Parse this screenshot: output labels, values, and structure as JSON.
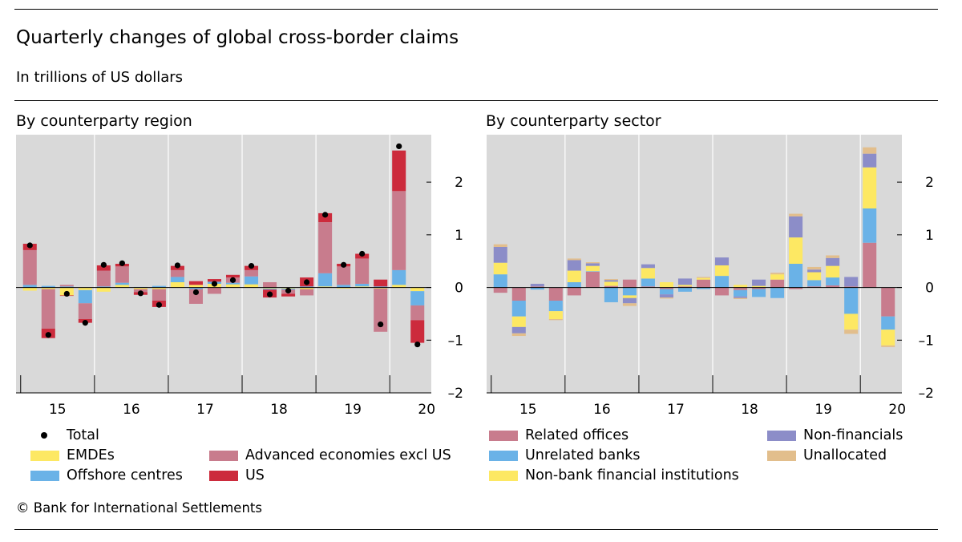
{
  "header": {
    "title": "Quarterly changes of global cross-border claims",
    "subtitle": "In trillions of US dollars"
  },
  "footer": {
    "source": "© Bank for International Settlements"
  },
  "colors": {
    "emdes": "#FDE863",
    "offshore": "#6AB2E7",
    "advanced": "#C87C8D",
    "us": "#CC2B3C",
    "related": "#C87C8D",
    "unrelated": "#6AB2E7",
    "nonbank": "#FDE863",
    "nonfin": "#8C8DC8",
    "unallocated": "#E2BE8C",
    "panel_bg": "#D9D9D9",
    "grid": "#FFFFFF"
  },
  "chart_data": [
    {
      "type": "bar",
      "stacked": true,
      "title": "By counterparty region",
      "ylim": [
        -2,
        2.9
      ],
      "yticks": [
        -2,
        -1,
        0,
        1,
        2
      ],
      "ytick_labels": [
        "–2",
        "–1",
        "0",
        "1",
        "2"
      ],
      "x_labels": [
        "15",
        "16",
        "17",
        "18",
        "19",
        "20"
      ],
      "grid": true,
      "legend_position": "bottom",
      "quarters": [
        "2015Q1",
        "2015Q2",
        "2015Q3",
        "2015Q4",
        "2016Q1",
        "2016Q2",
        "2016Q3",
        "2016Q4",
        "2017Q1",
        "2017Q2",
        "2017Q3",
        "2017Q4",
        "2018Q1",
        "2018Q2",
        "2018Q3",
        "2018Q4",
        "2019Q1",
        "2019Q2",
        "2019Q3",
        "2019Q4",
        "2020Q1",
        "2020Q2"
      ],
      "series": [
        {
          "name": "EMDEs",
          "key": "emdes",
          "values": [
            -0.06,
            -0.03,
            -0.15,
            -0.05,
            -0.08,
            0.05,
            -0.03,
            -0.03,
            0.1,
            0.05,
            0.07,
            0.06,
            0.06,
            -0.02,
            -0.02,
            -0.03,
            0.02,
            -0.02,
            0.02,
            -0.02,
            0.05,
            -0.07
          ]
        },
        {
          "name": "Offshore centres",
          "key": "offshore",
          "values": [
            0.05,
            0.03,
            0.02,
            -0.25,
            0.02,
            0.04,
            0.01,
            0.03,
            0.1,
            -0.03,
            0.04,
            0.03,
            0.15,
            -0.02,
            -0.02,
            0.02,
            0.25,
            0.05,
            0.05,
            0.02,
            0.28,
            -0.27
          ]
        },
        {
          "name": "Advanced economies excl US",
          "key": "advanced",
          "values": [
            0.66,
            -0.75,
            0.03,
            -0.3,
            0.3,
            0.31,
            -0.06,
            -0.22,
            0.13,
            -0.28,
            -0.12,
            0.1,
            0.12,
            0.1,
            -0.08,
            -0.12,
            0.97,
            0.35,
            0.48,
            -0.82,
            1.5,
            -0.28
          ]
        },
        {
          "name": "US",
          "key": "us",
          "values": [
            0.12,
            -0.18,
            -0.01,
            -0.07,
            0.1,
            0.05,
            -0.05,
            -0.12,
            0.08,
            0.07,
            0.05,
            0.05,
            0.08,
            -0.15,
            -0.05,
            0.17,
            0.17,
            0.05,
            0.09,
            0.13,
            0.77,
            -0.43
          ]
        }
      ],
      "total": {
        "name": "Total",
        "values": [
          0.8,
          -0.9,
          -0.12,
          -0.67,
          0.43,
          0.46,
          -0.11,
          -0.33,
          0.42,
          -0.09,
          0.07,
          0.14,
          0.41,
          -0.13,
          -0.06,
          0.1,
          1.38,
          0.43,
          0.64,
          -0.7,
          2.68,
          -1.08
        ]
      }
    },
    {
      "type": "bar",
      "stacked": true,
      "title": "By counterparty sector",
      "ylim": [
        -2,
        2.9
      ],
      "yticks": [
        -2,
        -1,
        0,
        1,
        2
      ],
      "ytick_labels": [
        "–2",
        "–1",
        "0",
        "1",
        "2"
      ],
      "x_labels": [
        "15",
        "16",
        "17",
        "18",
        "19",
        "20"
      ],
      "grid": true,
      "legend_position": "bottom",
      "quarters": [
        "2015Q1",
        "2015Q2",
        "2015Q3",
        "2015Q4",
        "2016Q1",
        "2016Q2",
        "2016Q3",
        "2016Q4",
        "2017Q1",
        "2017Q2",
        "2017Q3",
        "2017Q4",
        "2018Q1",
        "2018Q2",
        "2018Q3",
        "2018Q4",
        "2019Q1",
        "2019Q2",
        "2019Q3",
        "2019Q4",
        "2020Q1",
        "2020Q2"
      ],
      "series": [
        {
          "name": "Related offices",
          "key": "related",
          "values": [
            -0.1,
            -0.25,
            0.02,
            -0.25,
            -0.15,
            0.3,
            0.03,
            0.15,
            0.02,
            -0.03,
            0.02,
            0.15,
            -0.15,
            -0.05,
            -0.03,
            0.15,
            -0.03,
            0.02,
            0.04,
            0.02,
            0.85,
            -0.55
          ]
        },
        {
          "name": "Unrelated banks",
          "key": "unrelated",
          "values": [
            0.25,
            -0.3,
            -0.04,
            -0.2,
            0.1,
            0.01,
            -0.28,
            -0.15,
            0.15,
            -0.1,
            -0.08,
            -0.03,
            0.22,
            -0.12,
            -0.15,
            -0.2,
            0.45,
            0.12,
            0.15,
            -0.5,
            0.65,
            -0.25
          ]
        },
        {
          "name": "Non-bank financial institutions",
          "key": "nonbank",
          "values": [
            0.22,
            -0.2,
            0.0,
            -0.15,
            0.22,
            0.1,
            0.08,
            -0.05,
            0.2,
            0.1,
            0.03,
            0.03,
            0.2,
            0.05,
            0.03,
            0.1,
            0.5,
            0.15,
            0.22,
            -0.3,
            0.78,
            -0.3
          ]
        },
        {
          "name": "Non-financials",
          "key": "nonfin",
          "values": [
            0.3,
            -0.12,
            0.05,
            0.0,
            0.2,
            0.05,
            0.03,
            -0.1,
            0.07,
            -0.06,
            0.12,
            0.0,
            0.15,
            -0.03,
            0.12,
            0.0,
            0.4,
            0.05,
            0.15,
            0.18,
            0.26,
            0.0
          ]
        },
        {
          "name": "Unallocated",
          "key": "unallocated",
          "values": [
            0.05,
            -0.05,
            0.0,
            -0.02,
            0.03,
            0.02,
            0.02,
            -0.05,
            0.0,
            -0.02,
            0.0,
            0.02,
            0.0,
            -0.02,
            0.0,
            0.03,
            0.05,
            0.05,
            0.05,
            -0.08,
            0.12,
            -0.03
          ]
        }
      ]
    }
  ],
  "legend_left": {
    "total": "Total",
    "emdes": "EMDEs",
    "offshore": "Offshore centres",
    "advanced": "Advanced economies excl US",
    "us": "US"
  },
  "legend_right": {
    "related": "Related offices",
    "unrelated": "Unrelated banks",
    "nonbank": "Non-bank financial institutions",
    "nonfin": "Non-financials",
    "unallocated": "Unallocated"
  }
}
